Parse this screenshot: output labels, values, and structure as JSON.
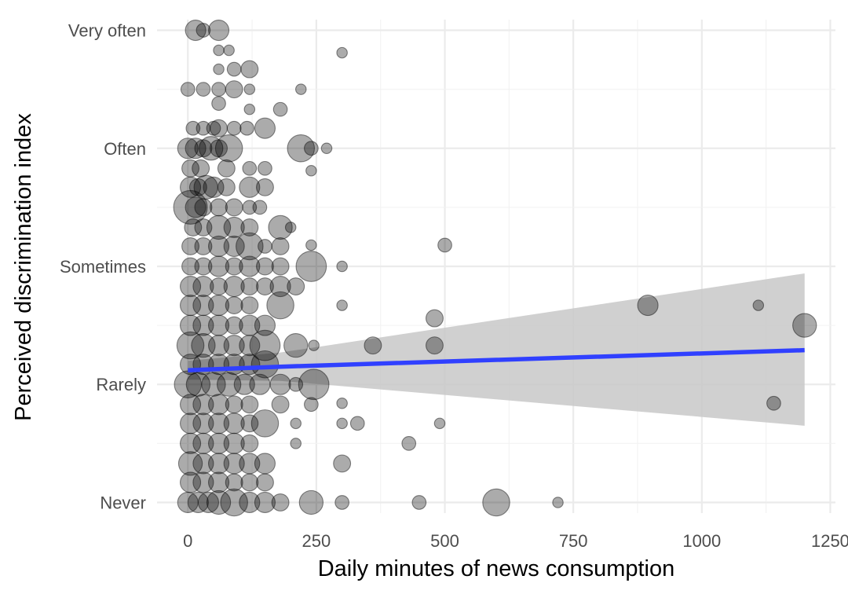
{
  "chart_data": {
    "type": "scatter",
    "title": "",
    "xlabel": "Daily minutes of news consumption",
    "ylabel": "Perceived discrimination index",
    "xlim": [
      -60,
      1260
    ],
    "ylim": [
      0.91,
      5.09
    ],
    "x_ticks": [
      0,
      250,
      500,
      750,
      1000,
      1250
    ],
    "x_tick_labels": [
      "0",
      "250",
      "500",
      "750",
      "1000",
      "1250"
    ],
    "y_ticks": [
      1,
      2,
      3,
      4,
      5
    ],
    "y_tick_labels": [
      "Never",
      "Rarely",
      "Sometimes",
      "Often",
      "Very often"
    ],
    "grid": true,
    "legend": "none",
    "point_color": "#000000",
    "point_alpha": 0.33,
    "points": [
      {
        "x": 15,
        "y": 5.0,
        "size": 5
      },
      {
        "x": 30,
        "y": 5.0,
        "size": 3
      },
      {
        "x": 60,
        "y": 5.0,
        "size": 5
      },
      {
        "x": 60,
        "y": 4.83,
        "size": 2
      },
      {
        "x": 80,
        "y": 4.83,
        "size": 2
      },
      {
        "x": 300,
        "y": 4.81,
        "size": 2
      },
      {
        "x": 60,
        "y": 4.67,
        "size": 2
      },
      {
        "x": 90,
        "y": 4.67,
        "size": 3
      },
      {
        "x": 120,
        "y": 4.67,
        "size": 4
      },
      {
        "x": 0,
        "y": 4.5,
        "size": 3
      },
      {
        "x": 30,
        "y": 4.5,
        "size": 3
      },
      {
        "x": 60,
        "y": 4.5,
        "size": 3
      },
      {
        "x": 90,
        "y": 4.5,
        "size": 4
      },
      {
        "x": 120,
        "y": 4.5,
        "size": 2
      },
      {
        "x": 220,
        "y": 4.5,
        "size": 2
      },
      {
        "x": 60,
        "y": 4.38,
        "size": 3
      },
      {
        "x": 120,
        "y": 4.33,
        "size": 2
      },
      {
        "x": 180,
        "y": 4.33,
        "size": 3
      },
      {
        "x": 10,
        "y": 4.17,
        "size": 3
      },
      {
        "x": 30,
        "y": 4.17,
        "size": 3
      },
      {
        "x": 50,
        "y": 4.17,
        "size": 3
      },
      {
        "x": 60,
        "y": 4.17,
        "size": 4
      },
      {
        "x": 90,
        "y": 4.17,
        "size": 3
      },
      {
        "x": 115,
        "y": 4.17,
        "size": 3
      },
      {
        "x": 150,
        "y": 4.17,
        "size": 5
      },
      {
        "x": 0,
        "y": 4.0,
        "size": 5
      },
      {
        "x": 15,
        "y": 4.0,
        "size": 5
      },
      {
        "x": 30,
        "y": 4.0,
        "size": 4
      },
      {
        "x": 45,
        "y": 4.0,
        "size": 6
      },
      {
        "x": 60,
        "y": 4.0,
        "size": 4
      },
      {
        "x": 80,
        "y": 4.0,
        "size": 7
      },
      {
        "x": 220,
        "y": 4.0,
        "size": 7
      },
      {
        "x": 240,
        "y": 4.0,
        "size": 3
      },
      {
        "x": 270,
        "y": 4.0,
        "size": 2
      },
      {
        "x": 5,
        "y": 3.83,
        "size": 4
      },
      {
        "x": 25,
        "y": 3.83,
        "size": 4
      },
      {
        "x": 75,
        "y": 3.83,
        "size": 4
      },
      {
        "x": 120,
        "y": 3.83,
        "size": 3
      },
      {
        "x": 150,
        "y": 3.83,
        "size": 3
      },
      {
        "x": 240,
        "y": 3.81,
        "size": 2
      },
      {
        "x": 5,
        "y": 3.67,
        "size": 5
      },
      {
        "x": 20,
        "y": 3.67,
        "size": 4
      },
      {
        "x": 35,
        "y": 3.67,
        "size": 6
      },
      {
        "x": 50,
        "y": 3.67,
        "size": 5
      },
      {
        "x": 75,
        "y": 3.67,
        "size": 4
      },
      {
        "x": 120,
        "y": 3.67,
        "size": 5
      },
      {
        "x": 150,
        "y": 3.67,
        "size": 4
      },
      {
        "x": 5,
        "y": 3.5,
        "size": 9
      },
      {
        "x": 15,
        "y": 3.5,
        "size": 5
      },
      {
        "x": 30,
        "y": 3.5,
        "size": 4
      },
      {
        "x": 60,
        "y": 3.5,
        "size": 4
      },
      {
        "x": 90,
        "y": 3.5,
        "size": 4
      },
      {
        "x": 120,
        "y": 3.5,
        "size": 3
      },
      {
        "x": 140,
        "y": 3.5,
        "size": 3
      },
      {
        "x": 10,
        "y": 3.33,
        "size": 4
      },
      {
        "x": 30,
        "y": 3.33,
        "size": 4
      },
      {
        "x": 60,
        "y": 3.33,
        "size": 6
      },
      {
        "x": 90,
        "y": 3.33,
        "size": 5
      },
      {
        "x": 120,
        "y": 3.33,
        "size": 4
      },
      {
        "x": 180,
        "y": 3.33,
        "size": 6
      },
      {
        "x": 200,
        "y": 3.33,
        "size": 2
      },
      {
        "x": 5,
        "y": 3.17,
        "size": 4
      },
      {
        "x": 30,
        "y": 3.17,
        "size": 4
      },
      {
        "x": 60,
        "y": 3.17,
        "size": 5
      },
      {
        "x": 90,
        "y": 3.17,
        "size": 5
      },
      {
        "x": 120,
        "y": 3.17,
        "size": 7
      },
      {
        "x": 150,
        "y": 3.17,
        "size": 3
      },
      {
        "x": 180,
        "y": 3.17,
        "size": 4
      },
      {
        "x": 240,
        "y": 3.18,
        "size": 2
      },
      {
        "x": 500,
        "y": 3.18,
        "size": 3
      },
      {
        "x": 5,
        "y": 3.0,
        "size": 4
      },
      {
        "x": 30,
        "y": 3.0,
        "size": 4
      },
      {
        "x": 60,
        "y": 3.0,
        "size": 5
      },
      {
        "x": 90,
        "y": 3.0,
        "size": 4
      },
      {
        "x": 120,
        "y": 3.0,
        "size": 5
      },
      {
        "x": 150,
        "y": 3.0,
        "size": 4
      },
      {
        "x": 180,
        "y": 3.0,
        "size": 4
      },
      {
        "x": 240,
        "y": 3.0,
        "size": 8
      },
      {
        "x": 300,
        "y": 3.0,
        "size": 2
      },
      {
        "x": 5,
        "y": 2.83,
        "size": 5
      },
      {
        "x": 30,
        "y": 2.83,
        "size": 5
      },
      {
        "x": 60,
        "y": 2.83,
        "size": 4
      },
      {
        "x": 90,
        "y": 2.83,
        "size": 5
      },
      {
        "x": 120,
        "y": 2.83,
        "size": 4
      },
      {
        "x": 150,
        "y": 2.83,
        "size": 4
      },
      {
        "x": 180,
        "y": 2.83,
        "size": 5
      },
      {
        "x": 210,
        "y": 2.83,
        "size": 4
      },
      {
        "x": 5,
        "y": 2.67,
        "size": 5
      },
      {
        "x": 30,
        "y": 2.67,
        "size": 5
      },
      {
        "x": 60,
        "y": 2.67,
        "size": 5
      },
      {
        "x": 90,
        "y": 2.67,
        "size": 4
      },
      {
        "x": 120,
        "y": 2.67,
        "size": 4
      },
      {
        "x": 180,
        "y": 2.67,
        "size": 7
      },
      {
        "x": 300,
        "y": 2.67,
        "size": 2
      },
      {
        "x": 895,
        "y": 2.67,
        "size": 5
      },
      {
        "x": 1110,
        "y": 2.67,
        "size": 2
      },
      {
        "x": 5,
        "y": 2.5,
        "size": 5
      },
      {
        "x": 30,
        "y": 2.5,
        "size": 5
      },
      {
        "x": 60,
        "y": 2.5,
        "size": 5
      },
      {
        "x": 90,
        "y": 2.5,
        "size": 4
      },
      {
        "x": 120,
        "y": 2.5,
        "size": 5
      },
      {
        "x": 150,
        "y": 2.5,
        "size": 5
      },
      {
        "x": 480,
        "y": 2.56,
        "size": 4
      },
      {
        "x": 1200,
        "y": 2.5,
        "size": 6
      },
      {
        "x": 5,
        "y": 2.33,
        "size": 7
      },
      {
        "x": 30,
        "y": 2.33,
        "size": 6
      },
      {
        "x": 60,
        "y": 2.33,
        "size": 5
      },
      {
        "x": 90,
        "y": 2.33,
        "size": 5
      },
      {
        "x": 120,
        "y": 2.33,
        "size": 5
      },
      {
        "x": 150,
        "y": 2.33,
        "size": 8
      },
      {
        "x": 210,
        "y": 2.33,
        "size": 6
      },
      {
        "x": 245,
        "y": 2.33,
        "size": 2
      },
      {
        "x": 360,
        "y": 2.33,
        "size": 4
      },
      {
        "x": 480,
        "y": 2.33,
        "size": 4
      },
      {
        "x": 5,
        "y": 2.17,
        "size": 5
      },
      {
        "x": 30,
        "y": 2.17,
        "size": 5
      },
      {
        "x": 60,
        "y": 2.17,
        "size": 5
      },
      {
        "x": 90,
        "y": 2.17,
        "size": 5
      },
      {
        "x": 120,
        "y": 2.17,
        "size": 5
      },
      {
        "x": 150,
        "y": 2.17,
        "size": 7
      },
      {
        "x": 0,
        "y": 2.0,
        "size": 7
      },
      {
        "x": 20,
        "y": 2.0,
        "size": 6
      },
      {
        "x": 50,
        "y": 2.0,
        "size": 6
      },
      {
        "x": 80,
        "y": 2.0,
        "size": 6
      },
      {
        "x": 110,
        "y": 2.0,
        "size": 5
      },
      {
        "x": 140,
        "y": 2.0,
        "size": 5
      },
      {
        "x": 180,
        "y": 2.0,
        "size": 5
      },
      {
        "x": 210,
        "y": 2.0,
        "size": 3
      },
      {
        "x": 245,
        "y": 2.0,
        "size": 8
      },
      {
        "x": 5,
        "y": 1.83,
        "size": 5
      },
      {
        "x": 30,
        "y": 1.83,
        "size": 5
      },
      {
        "x": 60,
        "y": 1.83,
        "size": 5
      },
      {
        "x": 90,
        "y": 1.83,
        "size": 4
      },
      {
        "x": 120,
        "y": 1.83,
        "size": 4
      },
      {
        "x": 180,
        "y": 1.83,
        "size": 4
      },
      {
        "x": 240,
        "y": 1.83,
        "size": 3
      },
      {
        "x": 300,
        "y": 1.84,
        "size": 2
      },
      {
        "x": 1140,
        "y": 1.84,
        "size": 3
      },
      {
        "x": 5,
        "y": 1.67,
        "size": 5
      },
      {
        "x": 30,
        "y": 1.67,
        "size": 5
      },
      {
        "x": 60,
        "y": 1.67,
        "size": 5
      },
      {
        "x": 90,
        "y": 1.67,
        "size": 5
      },
      {
        "x": 120,
        "y": 1.67,
        "size": 4
      },
      {
        "x": 150,
        "y": 1.67,
        "size": 7
      },
      {
        "x": 210,
        "y": 1.67,
        "size": 2
      },
      {
        "x": 300,
        "y": 1.67,
        "size": 2
      },
      {
        "x": 330,
        "y": 1.67,
        "size": 3
      },
      {
        "x": 490,
        "y": 1.67,
        "size": 2
      },
      {
        "x": 5,
        "y": 1.5,
        "size": 5
      },
      {
        "x": 30,
        "y": 1.5,
        "size": 5
      },
      {
        "x": 60,
        "y": 1.5,
        "size": 5
      },
      {
        "x": 90,
        "y": 1.5,
        "size": 5
      },
      {
        "x": 120,
        "y": 1.5,
        "size": 4
      },
      {
        "x": 210,
        "y": 1.5,
        "size": 2
      },
      {
        "x": 430,
        "y": 1.5,
        "size": 3
      },
      {
        "x": 5,
        "y": 1.33,
        "size": 6
      },
      {
        "x": 30,
        "y": 1.33,
        "size": 5
      },
      {
        "x": 60,
        "y": 1.33,
        "size": 5
      },
      {
        "x": 90,
        "y": 1.33,
        "size": 5
      },
      {
        "x": 120,
        "y": 1.33,
        "size": 5
      },
      {
        "x": 150,
        "y": 1.33,
        "size": 5
      },
      {
        "x": 300,
        "y": 1.33,
        "size": 4
      },
      {
        "x": 5,
        "y": 1.17,
        "size": 5
      },
      {
        "x": 30,
        "y": 1.17,
        "size": 5
      },
      {
        "x": 60,
        "y": 1.17,
        "size": 5
      },
      {
        "x": 90,
        "y": 1.17,
        "size": 4
      },
      {
        "x": 120,
        "y": 1.17,
        "size": 4
      },
      {
        "x": 150,
        "y": 1.17,
        "size": 4
      },
      {
        "x": 0,
        "y": 1.0,
        "size": 5
      },
      {
        "x": 20,
        "y": 1.0,
        "size": 5
      },
      {
        "x": 40,
        "y": 1.0,
        "size": 5
      },
      {
        "x": 60,
        "y": 1.0,
        "size": 6
      },
      {
        "x": 90,
        "y": 1.0,
        "size": 7
      },
      {
        "x": 120,
        "y": 1.0,
        "size": 5
      },
      {
        "x": 150,
        "y": 1.0,
        "size": 5
      },
      {
        "x": 180,
        "y": 1.0,
        "size": 4
      },
      {
        "x": 240,
        "y": 1.0,
        "size": 6
      },
      {
        "x": 300,
        "y": 1.0,
        "size": 3
      },
      {
        "x": 450,
        "y": 1.0,
        "size": 3
      },
      {
        "x": 600,
        "y": 1.0,
        "size": 7
      },
      {
        "x": 720,
        "y": 1.0,
        "size": 2
      }
    ],
    "trend": {
      "color": "#3040ff",
      "ribbon_color": "#c8c8c8",
      "x": [
        0,
        180,
        1200
      ],
      "y": [
        2.12,
        2.15,
        2.29
      ],
      "ymin": [
        2.04,
        2.03,
        1.65
      ],
      "ymax": [
        2.2,
        2.27,
        2.94
      ]
    }
  }
}
